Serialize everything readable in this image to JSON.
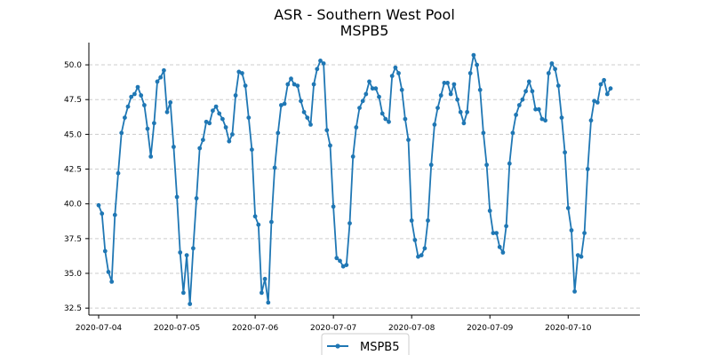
{
  "chart_data": {
    "type": "line",
    "title": "ASR - Southern West Pool",
    "subtitle": "MSPB5",
    "xlabel": "",
    "ylabel": "",
    "xlim": [
      "2020-07-03T21:00",
      "2020-07-10T22:00"
    ],
    "ylim": [
      32.0,
      51.6
    ],
    "x_ticks": [
      "2020-07-04",
      "2020-07-05",
      "2020-07-06",
      "2020-07-07",
      "2020-07-08",
      "2020-07-09",
      "2020-07-10"
    ],
    "y_ticks": [
      "32.5",
      "35.0",
      "37.5",
      "40.0",
      "42.5",
      "45.0",
      "47.5",
      "50.0"
    ],
    "grid": "horizontal dashed",
    "legend_position": "bottom-center",
    "series": [
      {
        "name": "MSPB5",
        "color": "#1f77b4",
        "points": [
          [
            "2020-07-04T00:00",
            39.9
          ],
          [
            "2020-07-04T01:00",
            39.3
          ],
          [
            "2020-07-04T02:00",
            36.6
          ],
          [
            "2020-07-04T03:00",
            35.1
          ],
          [
            "2020-07-04T04:00",
            34.4
          ],
          [
            "2020-07-04T05:00",
            39.2
          ],
          [
            "2020-07-04T06:00",
            42.2
          ],
          [
            "2020-07-04T07:00",
            45.1
          ],
          [
            "2020-07-04T08:00",
            46.2
          ],
          [
            "2020-07-04T09:00",
            47.0
          ],
          [
            "2020-07-04T10:00",
            47.7
          ],
          [
            "2020-07-04T11:00",
            47.9
          ],
          [
            "2020-07-04T12:00",
            48.4
          ],
          [
            "2020-07-04T13:00",
            47.8
          ],
          [
            "2020-07-04T14:00",
            47.1
          ],
          [
            "2020-07-04T15:00",
            45.4
          ],
          [
            "2020-07-04T16:00",
            43.4
          ],
          [
            "2020-07-04T17:00",
            45.8
          ],
          [
            "2020-07-04T18:00",
            48.8
          ],
          [
            "2020-07-04T19:00",
            49.1
          ],
          [
            "2020-07-04T20:00",
            49.6
          ],
          [
            "2020-07-04T21:00",
            46.6
          ],
          [
            "2020-07-04T22:00",
            47.3
          ],
          [
            "2020-07-04T23:00",
            44.1
          ],
          [
            "2020-07-05T00:00",
            40.5
          ],
          [
            "2020-07-05T01:00",
            36.5
          ],
          [
            "2020-07-05T02:00",
            33.6
          ],
          [
            "2020-07-05T03:00",
            36.3
          ],
          [
            "2020-07-05T04:00",
            32.8
          ],
          [
            "2020-07-05T05:00",
            36.8
          ],
          [
            "2020-07-05T06:00",
            40.4
          ],
          [
            "2020-07-05T07:00",
            44.0
          ],
          [
            "2020-07-05T08:00",
            44.6
          ],
          [
            "2020-07-05T09:00",
            45.9
          ],
          [
            "2020-07-05T10:00",
            45.8
          ],
          [
            "2020-07-05T11:00",
            46.7
          ],
          [
            "2020-07-05T12:00",
            47.0
          ],
          [
            "2020-07-05T13:00",
            46.5
          ],
          [
            "2020-07-05T14:00",
            46.1
          ],
          [
            "2020-07-05T15:00",
            45.5
          ],
          [
            "2020-07-05T16:00",
            44.5
          ],
          [
            "2020-07-05T17:00",
            45.0
          ],
          [
            "2020-07-05T18:00",
            47.8
          ],
          [
            "2020-07-05T19:00",
            49.5
          ],
          [
            "2020-07-05T20:00",
            49.4
          ],
          [
            "2020-07-05T21:00",
            48.5
          ],
          [
            "2020-07-05T22:00",
            46.2
          ],
          [
            "2020-07-05T23:00",
            43.9
          ],
          [
            "2020-07-06T00:00",
            39.1
          ],
          [
            "2020-07-06T01:00",
            38.5
          ],
          [
            "2020-07-06T02:00",
            33.6
          ],
          [
            "2020-07-06T03:00",
            34.6
          ],
          [
            "2020-07-06T04:00",
            32.9
          ],
          [
            "2020-07-06T05:00",
            38.7
          ],
          [
            "2020-07-06T06:00",
            42.6
          ],
          [
            "2020-07-06T07:00",
            45.1
          ],
          [
            "2020-07-06T08:00",
            47.1
          ],
          [
            "2020-07-06T09:00",
            47.2
          ],
          [
            "2020-07-06T10:00",
            48.6
          ],
          [
            "2020-07-06T11:00",
            49.0
          ],
          [
            "2020-07-06T12:00",
            48.6
          ],
          [
            "2020-07-06T13:00",
            48.5
          ],
          [
            "2020-07-06T14:00",
            47.4
          ],
          [
            "2020-07-06T15:00",
            46.6
          ],
          [
            "2020-07-06T16:00",
            46.2
          ],
          [
            "2020-07-06T17:00",
            45.7
          ],
          [
            "2020-07-06T18:00",
            48.6
          ],
          [
            "2020-07-06T19:00",
            49.7
          ],
          [
            "2020-07-06T20:00",
            50.3
          ],
          [
            "2020-07-06T21:00",
            50.1
          ],
          [
            "2020-07-06T22:00",
            45.3
          ],
          [
            "2020-07-06T23:00",
            44.2
          ],
          [
            "2020-07-07T00:00",
            39.8
          ],
          [
            "2020-07-07T01:00",
            36.1
          ],
          [
            "2020-07-07T02:00",
            35.9
          ],
          [
            "2020-07-07T03:00",
            35.5
          ],
          [
            "2020-07-07T04:00",
            35.6
          ],
          [
            "2020-07-07T05:00",
            38.6
          ],
          [
            "2020-07-07T06:00",
            43.4
          ],
          [
            "2020-07-07T07:00",
            45.5
          ],
          [
            "2020-07-07T08:00",
            46.9
          ],
          [
            "2020-07-07T09:00",
            47.4
          ],
          [
            "2020-07-07T10:00",
            47.9
          ],
          [
            "2020-07-07T11:00",
            48.8
          ],
          [
            "2020-07-07T12:00",
            48.3
          ],
          [
            "2020-07-07T13:00",
            48.3
          ],
          [
            "2020-07-07T14:00",
            47.7
          ],
          [
            "2020-07-07T15:00",
            46.5
          ],
          [
            "2020-07-07T16:00",
            46.1
          ],
          [
            "2020-07-07T17:00",
            45.9
          ],
          [
            "2020-07-07T18:00",
            49.2
          ],
          [
            "2020-07-07T19:00",
            49.8
          ],
          [
            "2020-07-07T20:00",
            49.4
          ],
          [
            "2020-07-07T21:00",
            48.2
          ],
          [
            "2020-07-07T22:00",
            46.1
          ],
          [
            "2020-07-07T23:00",
            44.6
          ],
          [
            "2020-07-08T00:00",
            38.8
          ],
          [
            "2020-07-08T01:00",
            37.4
          ],
          [
            "2020-07-08T02:00",
            36.2
          ],
          [
            "2020-07-08T03:00",
            36.3
          ],
          [
            "2020-07-08T04:00",
            36.8
          ],
          [
            "2020-07-08T05:00",
            38.8
          ],
          [
            "2020-07-08T06:00",
            42.8
          ],
          [
            "2020-07-08T07:00",
            45.7
          ],
          [
            "2020-07-08T08:00",
            46.9
          ],
          [
            "2020-07-08T09:00",
            47.8
          ],
          [
            "2020-07-08T10:00",
            48.7
          ],
          [
            "2020-07-08T11:00",
            48.7
          ],
          [
            "2020-07-08T12:00",
            47.9
          ],
          [
            "2020-07-08T13:00",
            48.6
          ],
          [
            "2020-07-08T14:00",
            47.5
          ],
          [
            "2020-07-08T15:00",
            46.6
          ],
          [
            "2020-07-08T16:00",
            45.8
          ],
          [
            "2020-07-08T17:00",
            46.6
          ],
          [
            "2020-07-08T18:00",
            49.4
          ],
          [
            "2020-07-08T19:00",
            50.7
          ],
          [
            "2020-07-08T20:00",
            50.0
          ],
          [
            "2020-07-08T21:00",
            48.2
          ],
          [
            "2020-07-08T22:00",
            45.1
          ],
          [
            "2020-07-08T23:00",
            42.8
          ],
          [
            "2020-07-09T00:00",
            39.5
          ],
          [
            "2020-07-09T01:00",
            37.9
          ],
          [
            "2020-07-09T02:00",
            37.9
          ],
          [
            "2020-07-09T03:00",
            36.9
          ],
          [
            "2020-07-09T04:00",
            36.5
          ],
          [
            "2020-07-09T05:00",
            38.4
          ],
          [
            "2020-07-09T06:00",
            42.9
          ],
          [
            "2020-07-09T07:00",
            45.1
          ],
          [
            "2020-07-09T08:00",
            46.4
          ],
          [
            "2020-07-09T09:00",
            47.1
          ],
          [
            "2020-07-09T10:00",
            47.5
          ],
          [
            "2020-07-09T11:00",
            48.1
          ],
          [
            "2020-07-09T12:00",
            48.8
          ],
          [
            "2020-07-09T13:00",
            48.1
          ],
          [
            "2020-07-09T14:00",
            46.8
          ],
          [
            "2020-07-09T15:00",
            46.8
          ],
          [
            "2020-07-09T16:00",
            46.1
          ],
          [
            "2020-07-09T17:00",
            46.0
          ],
          [
            "2020-07-09T18:00",
            49.4
          ],
          [
            "2020-07-09T19:00",
            50.1
          ],
          [
            "2020-07-09T20:00",
            49.7
          ],
          [
            "2020-07-09T21:00",
            48.5
          ],
          [
            "2020-07-09T22:00",
            46.2
          ],
          [
            "2020-07-09T23:00",
            43.7
          ],
          [
            "2020-07-10T00:00",
            39.7
          ],
          [
            "2020-07-10T01:00",
            38.1
          ],
          [
            "2020-07-10T02:00",
            33.7
          ],
          [
            "2020-07-10T03:00",
            36.3
          ],
          [
            "2020-07-10T04:00",
            36.2
          ],
          [
            "2020-07-10T05:00",
            37.9
          ],
          [
            "2020-07-10T06:00",
            42.5
          ],
          [
            "2020-07-10T07:00",
            46.0
          ],
          [
            "2020-07-10T08:00",
            47.4
          ],
          [
            "2020-07-10T09:00",
            47.3
          ],
          [
            "2020-07-10T10:00",
            48.6
          ],
          [
            "2020-07-10T11:00",
            48.9
          ],
          [
            "2020-07-10T12:00",
            47.9
          ],
          [
            "2020-07-10T13:00",
            48.3
          ]
        ]
      }
    ]
  }
}
